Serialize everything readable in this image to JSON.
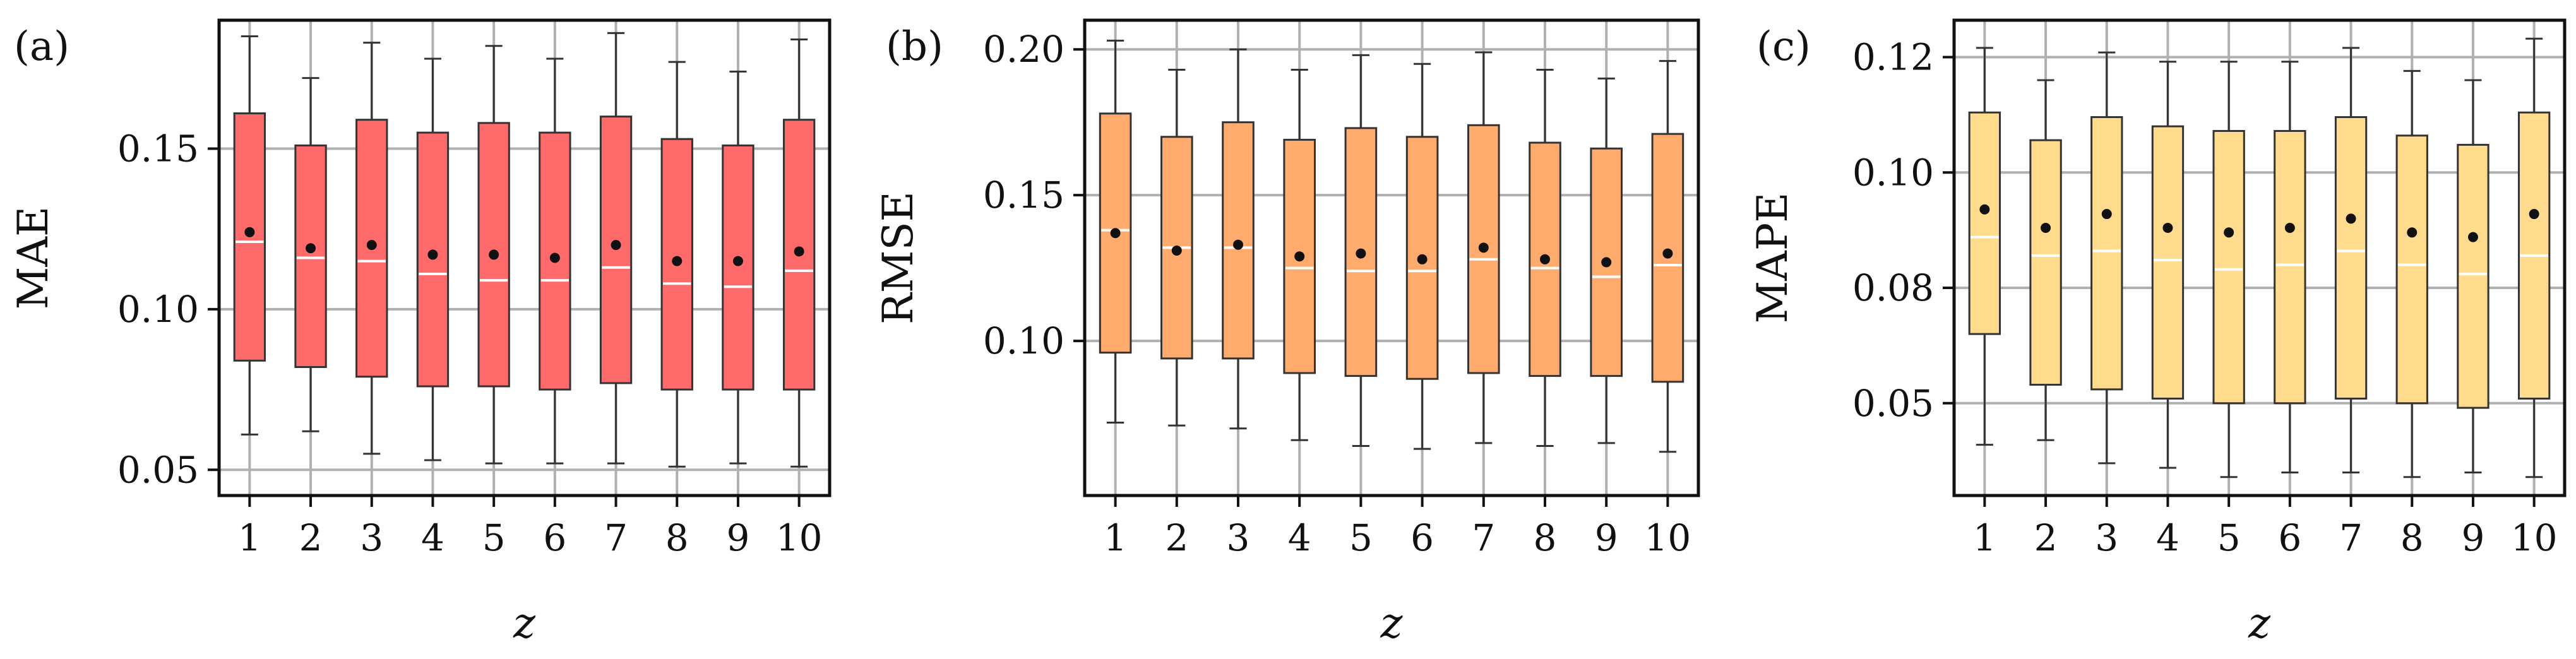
{
  "chart_data": [
    {
      "type": "box",
      "panel_label": "(a)",
      "xlabel": "z",
      "ylabel": "MAE",
      "categories": [
        "1",
        "2",
        "3",
        "4",
        "5",
        "6",
        "7",
        "8",
        "9",
        "10"
      ],
      "yticks": [
        "0.05",
        "0.10",
        "0.15"
      ],
      "ytick_values": [
        0.05,
        0.1,
        0.15
      ],
      "ylim": [
        0.042,
        0.19
      ],
      "grid": true,
      "box_color": "#ff6b6b",
      "boxes": [
        {
          "whislo": 0.061,
          "q1": 0.084,
          "med": 0.121,
          "q3": 0.161,
          "whishi": 0.185,
          "mean": 0.124
        },
        {
          "whislo": 0.062,
          "q1": 0.082,
          "med": 0.116,
          "q3": 0.151,
          "whishi": 0.172,
          "mean": 0.119
        },
        {
          "whislo": 0.055,
          "q1": 0.079,
          "med": 0.115,
          "q3": 0.159,
          "whishi": 0.183,
          "mean": 0.12
        },
        {
          "whislo": 0.053,
          "q1": 0.076,
          "med": 0.111,
          "q3": 0.155,
          "whishi": 0.178,
          "mean": 0.117
        },
        {
          "whislo": 0.052,
          "q1": 0.076,
          "med": 0.109,
          "q3": 0.158,
          "whishi": 0.182,
          "mean": 0.117
        },
        {
          "whislo": 0.052,
          "q1": 0.075,
          "med": 0.109,
          "q3": 0.155,
          "whishi": 0.178,
          "mean": 0.116
        },
        {
          "whislo": 0.052,
          "q1": 0.077,
          "med": 0.113,
          "q3": 0.16,
          "whishi": 0.186,
          "mean": 0.12
        },
        {
          "whislo": 0.051,
          "q1": 0.075,
          "med": 0.108,
          "q3": 0.153,
          "whishi": 0.177,
          "mean": 0.115
        },
        {
          "whislo": 0.052,
          "q1": 0.075,
          "med": 0.107,
          "q3": 0.151,
          "whishi": 0.174,
          "mean": 0.115
        },
        {
          "whislo": 0.051,
          "q1": 0.075,
          "med": 0.112,
          "q3": 0.159,
          "whishi": 0.184,
          "mean": 0.118
        }
      ]
    },
    {
      "type": "box",
      "panel_label": "(b)",
      "xlabel": "z",
      "ylabel": "RMSE",
      "categories": [
        "1",
        "2",
        "3",
        "4",
        "5",
        "6",
        "7",
        "8",
        "9",
        "10"
      ],
      "yticks": [
        "0.10",
        "0.15",
        "0.20"
      ],
      "ytick_values": [
        0.1,
        0.15,
        0.2
      ],
      "ylim": [
        0.047,
        0.21
      ],
      "grid": true,
      "box_color": "#ffab6e",
      "boxes": [
        {
          "whislo": 0.072,
          "q1": 0.096,
          "med": 0.138,
          "q3": 0.178,
          "whishi": 0.203,
          "mean": 0.137
        },
        {
          "whislo": 0.071,
          "q1": 0.094,
          "med": 0.132,
          "q3": 0.17,
          "whishi": 0.193,
          "mean": 0.131
        },
        {
          "whislo": 0.07,
          "q1": 0.094,
          "med": 0.132,
          "q3": 0.175,
          "whishi": 0.2,
          "mean": 0.133
        },
        {
          "whislo": 0.066,
          "q1": 0.089,
          "med": 0.125,
          "q3": 0.169,
          "whishi": 0.193,
          "mean": 0.129
        },
        {
          "whislo": 0.064,
          "q1": 0.088,
          "med": 0.124,
          "q3": 0.173,
          "whishi": 0.198,
          "mean": 0.13
        },
        {
          "whislo": 0.063,
          "q1": 0.087,
          "med": 0.124,
          "q3": 0.17,
          "whishi": 0.195,
          "mean": 0.128
        },
        {
          "whislo": 0.065,
          "q1": 0.089,
          "med": 0.128,
          "q3": 0.174,
          "whishi": 0.199,
          "mean": 0.132
        },
        {
          "whislo": 0.064,
          "q1": 0.088,
          "med": 0.125,
          "q3": 0.168,
          "whishi": 0.193,
          "mean": 0.128
        },
        {
          "whislo": 0.065,
          "q1": 0.088,
          "med": 0.122,
          "q3": 0.166,
          "whishi": 0.19,
          "mean": 0.127
        },
        {
          "whislo": 0.062,
          "q1": 0.086,
          "med": 0.126,
          "q3": 0.171,
          "whishi": 0.196,
          "mean": 0.13
        }
      ]
    },
    {
      "type": "box",
      "panel_label": "(c)",
      "xlabel": "z",
      "ylabel": "MAPE",
      "categories": [
        "1",
        "2",
        "3",
        "4",
        "5",
        "6",
        "7",
        "8",
        "9",
        "10"
      ],
      "yticks": [
        "0.05",
        "0.08",
        "0.10",
        "0.12"
      ],
      "ytick_values": [
        0.05,
        0.075,
        0.1,
        0.125
      ],
      "ylim": [
        0.03,
        0.133
      ],
      "grid": true,
      "box_color": "#ffdb8e",
      "boxes": [
        {
          "whislo": 0.041,
          "q1": 0.065,
          "med": 0.086,
          "q3": 0.113,
          "whishi": 0.127,
          "mean": 0.092
        },
        {
          "whislo": 0.042,
          "q1": 0.054,
          "med": 0.082,
          "q3": 0.107,
          "whishi": 0.12,
          "mean": 0.088
        },
        {
          "whislo": 0.037,
          "q1": 0.053,
          "med": 0.083,
          "q3": 0.112,
          "whishi": 0.126,
          "mean": 0.091
        },
        {
          "whislo": 0.036,
          "q1": 0.051,
          "med": 0.081,
          "q3": 0.11,
          "whishi": 0.124,
          "mean": 0.088
        },
        {
          "whislo": 0.034,
          "q1": 0.05,
          "med": 0.079,
          "q3": 0.109,
          "whishi": 0.124,
          "mean": 0.087
        },
        {
          "whislo": 0.035,
          "q1": 0.05,
          "med": 0.08,
          "q3": 0.109,
          "whishi": 0.124,
          "mean": 0.088
        },
        {
          "whislo": 0.035,
          "q1": 0.051,
          "med": 0.083,
          "q3": 0.112,
          "whishi": 0.127,
          "mean": 0.09
        },
        {
          "whislo": 0.034,
          "q1": 0.05,
          "med": 0.08,
          "q3": 0.108,
          "whishi": 0.122,
          "mean": 0.087
        },
        {
          "whislo": 0.035,
          "q1": 0.049,
          "med": 0.078,
          "q3": 0.106,
          "whishi": 0.12,
          "mean": 0.086
        },
        {
          "whislo": 0.034,
          "q1": 0.051,
          "med": 0.082,
          "q3": 0.113,
          "whishi": 0.129,
          "mean": 0.091
        }
      ]
    }
  ]
}
